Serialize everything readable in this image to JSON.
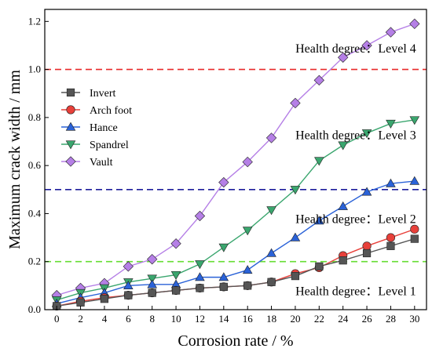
{
  "chart_data": {
    "type": "line",
    "xlabel": "Corrosion rate / %",
    "ylabel": "Maximum crack width / mm",
    "xlim": [
      -1,
      31
    ],
    "ylim": [
      0,
      1.25
    ],
    "x": [
      0,
      2,
      4,
      6,
      8,
      10,
      12,
      14,
      16,
      18,
      20,
      22,
      24,
      26,
      28,
      30
    ],
    "x_ticks": [
      0,
      2,
      4,
      6,
      8,
      10,
      12,
      14,
      16,
      18,
      20,
      22,
      24,
      26,
      28,
      30
    ],
    "y_ticks": [
      0.0,
      0.2,
      0.4,
      0.6,
      0.8,
      1.0,
      1.2
    ],
    "legend_position": "left",
    "series": [
      {
        "name": "Invert",
        "color": "#555555",
        "marker": "square",
        "values": [
          0.015,
          0.03,
          0.045,
          0.06,
          0.07,
          0.08,
          0.09,
          0.095,
          0.1,
          0.115,
          0.14,
          0.18,
          0.205,
          0.235,
          0.265,
          0.295
        ]
      },
      {
        "name": "Arch foot",
        "color": "#e8403a",
        "marker": "circle",
        "values": [
          0.015,
          0.035,
          0.05,
          0.06,
          0.07,
          0.08,
          0.09,
          0.095,
          0.1,
          0.115,
          0.15,
          0.175,
          0.225,
          0.265,
          0.3,
          0.335
        ]
      },
      {
        "name": "Hance",
        "color": "#2a62d8",
        "marker": "triangle-up",
        "values": [
          0.025,
          0.05,
          0.07,
          0.1,
          0.105,
          0.105,
          0.135,
          0.135,
          0.165,
          0.235,
          0.3,
          0.37,
          0.43,
          0.49,
          0.525,
          0.535
        ]
      },
      {
        "name": "Spandrel",
        "color": "#3aa66e",
        "marker": "triangle-down",
        "values": [
          0.04,
          0.07,
          0.09,
          0.115,
          0.13,
          0.145,
          0.19,
          0.26,
          0.33,
          0.415,
          0.5,
          0.62,
          0.685,
          0.735,
          0.775,
          0.79
        ]
      },
      {
        "name": "Vault",
        "color": "#b57fe6",
        "marker": "diamond",
        "values": [
          0.06,
          0.09,
          0.11,
          0.18,
          0.21,
          0.275,
          0.39,
          0.53,
          0.615,
          0.715,
          0.86,
          0.955,
          1.05,
          1.1,
          1.155,
          1.19
        ]
      }
    ],
    "reference_lines": [
      {
        "y": 1.0,
        "color": "#e82a2a"
      },
      {
        "y": 0.5,
        "color": "#1e1e9c"
      },
      {
        "y": 0.2,
        "color": "#66dd33"
      }
    ],
    "annotations": [
      {
        "text": "Health degree：Level 4",
        "x": 30,
        "y": 1.07
      },
      {
        "text": "Health degree：Level 3",
        "x": 30,
        "y": 0.71
      },
      {
        "text": "Health degree：Level 2",
        "x": 30,
        "y": 0.36
      },
      {
        "text": "Health degree：Level 1",
        "x": 30,
        "y": 0.06
      }
    ]
  }
}
